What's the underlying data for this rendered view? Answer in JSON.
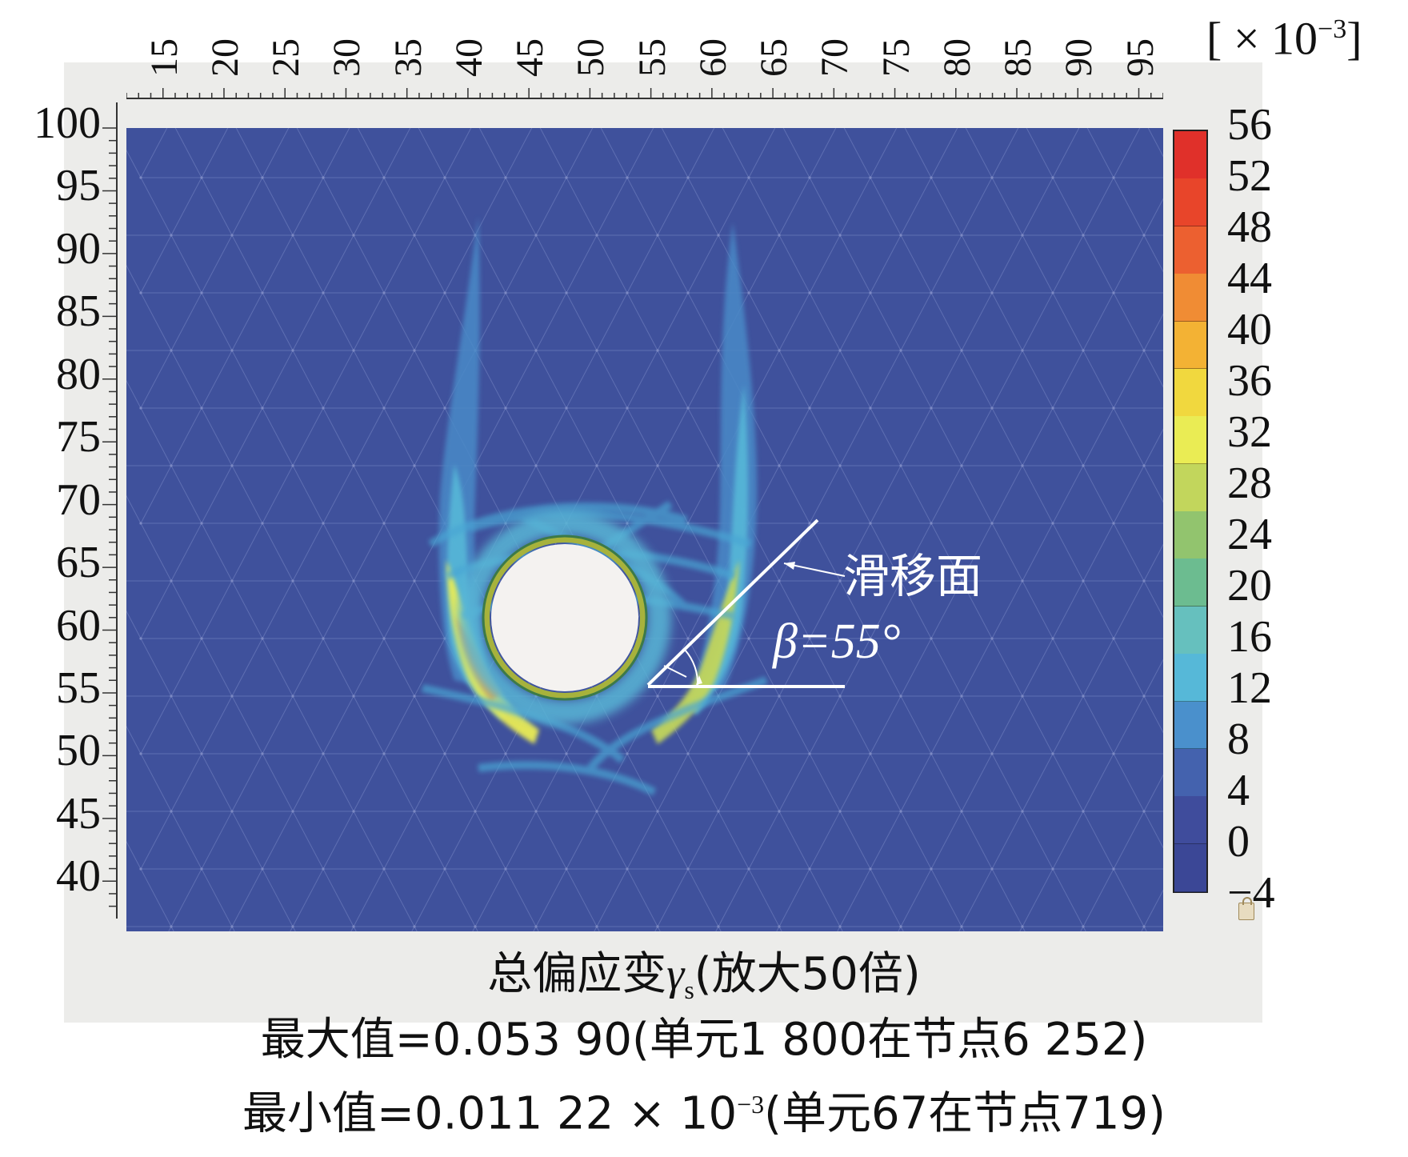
{
  "figure": {
    "x_axis": {
      "ticks": [
        "15",
        "20",
        "25",
        "30",
        "35",
        "40",
        "45",
        "50",
        "55",
        "60",
        "65",
        "70",
        "75",
        "80",
        "85",
        "90",
        "95"
      ],
      "range": [
        12,
        97
      ],
      "unit_prefix": "[ × 10",
      "unit_exp": "−3",
      "unit_suffix": "]"
    },
    "y_axis": {
      "ticks": [
        "100",
        "95",
        "90",
        "85",
        "80",
        "75",
        "70",
        "65",
        "60",
        "55",
        "50",
        "45",
        "40"
      ],
      "range": [
        36,
        100
      ]
    },
    "colorbar": {
      "labels": [
        "56",
        "52",
        "48",
        "44",
        "40",
        "36",
        "32",
        "28",
        "24",
        "20",
        "16",
        "12",
        "8",
        "4",
        "0",
        "−4"
      ],
      "colors": [
        "#e0302a",
        "#e8452a",
        "#ec6030",
        "#f08c34",
        "#f3b234",
        "#f1d83e",
        "#eaec54",
        "#c2d65c",
        "#92c46e",
        "#6cbc90",
        "#66c0be",
        "#56b8d8",
        "#4a90cc",
        "#4462ae",
        "#3f4c9c",
        "#3b4796"
      ]
    },
    "annotations": {
      "slip_label": "滑移面",
      "beta_label": "β=55°"
    },
    "captions": {
      "title_pre": "总偏应变",
      "title_gamma": "γ",
      "title_sub": "s",
      "title_post": "(放大50倍)",
      "max_line": "最大值=0.053 90(单元1 800在节点6 252)",
      "min_pre": "最小值=0.011 22 × 10",
      "min_exp": "−3",
      "min_post": "(单元67在节点719)"
    }
  }
}
